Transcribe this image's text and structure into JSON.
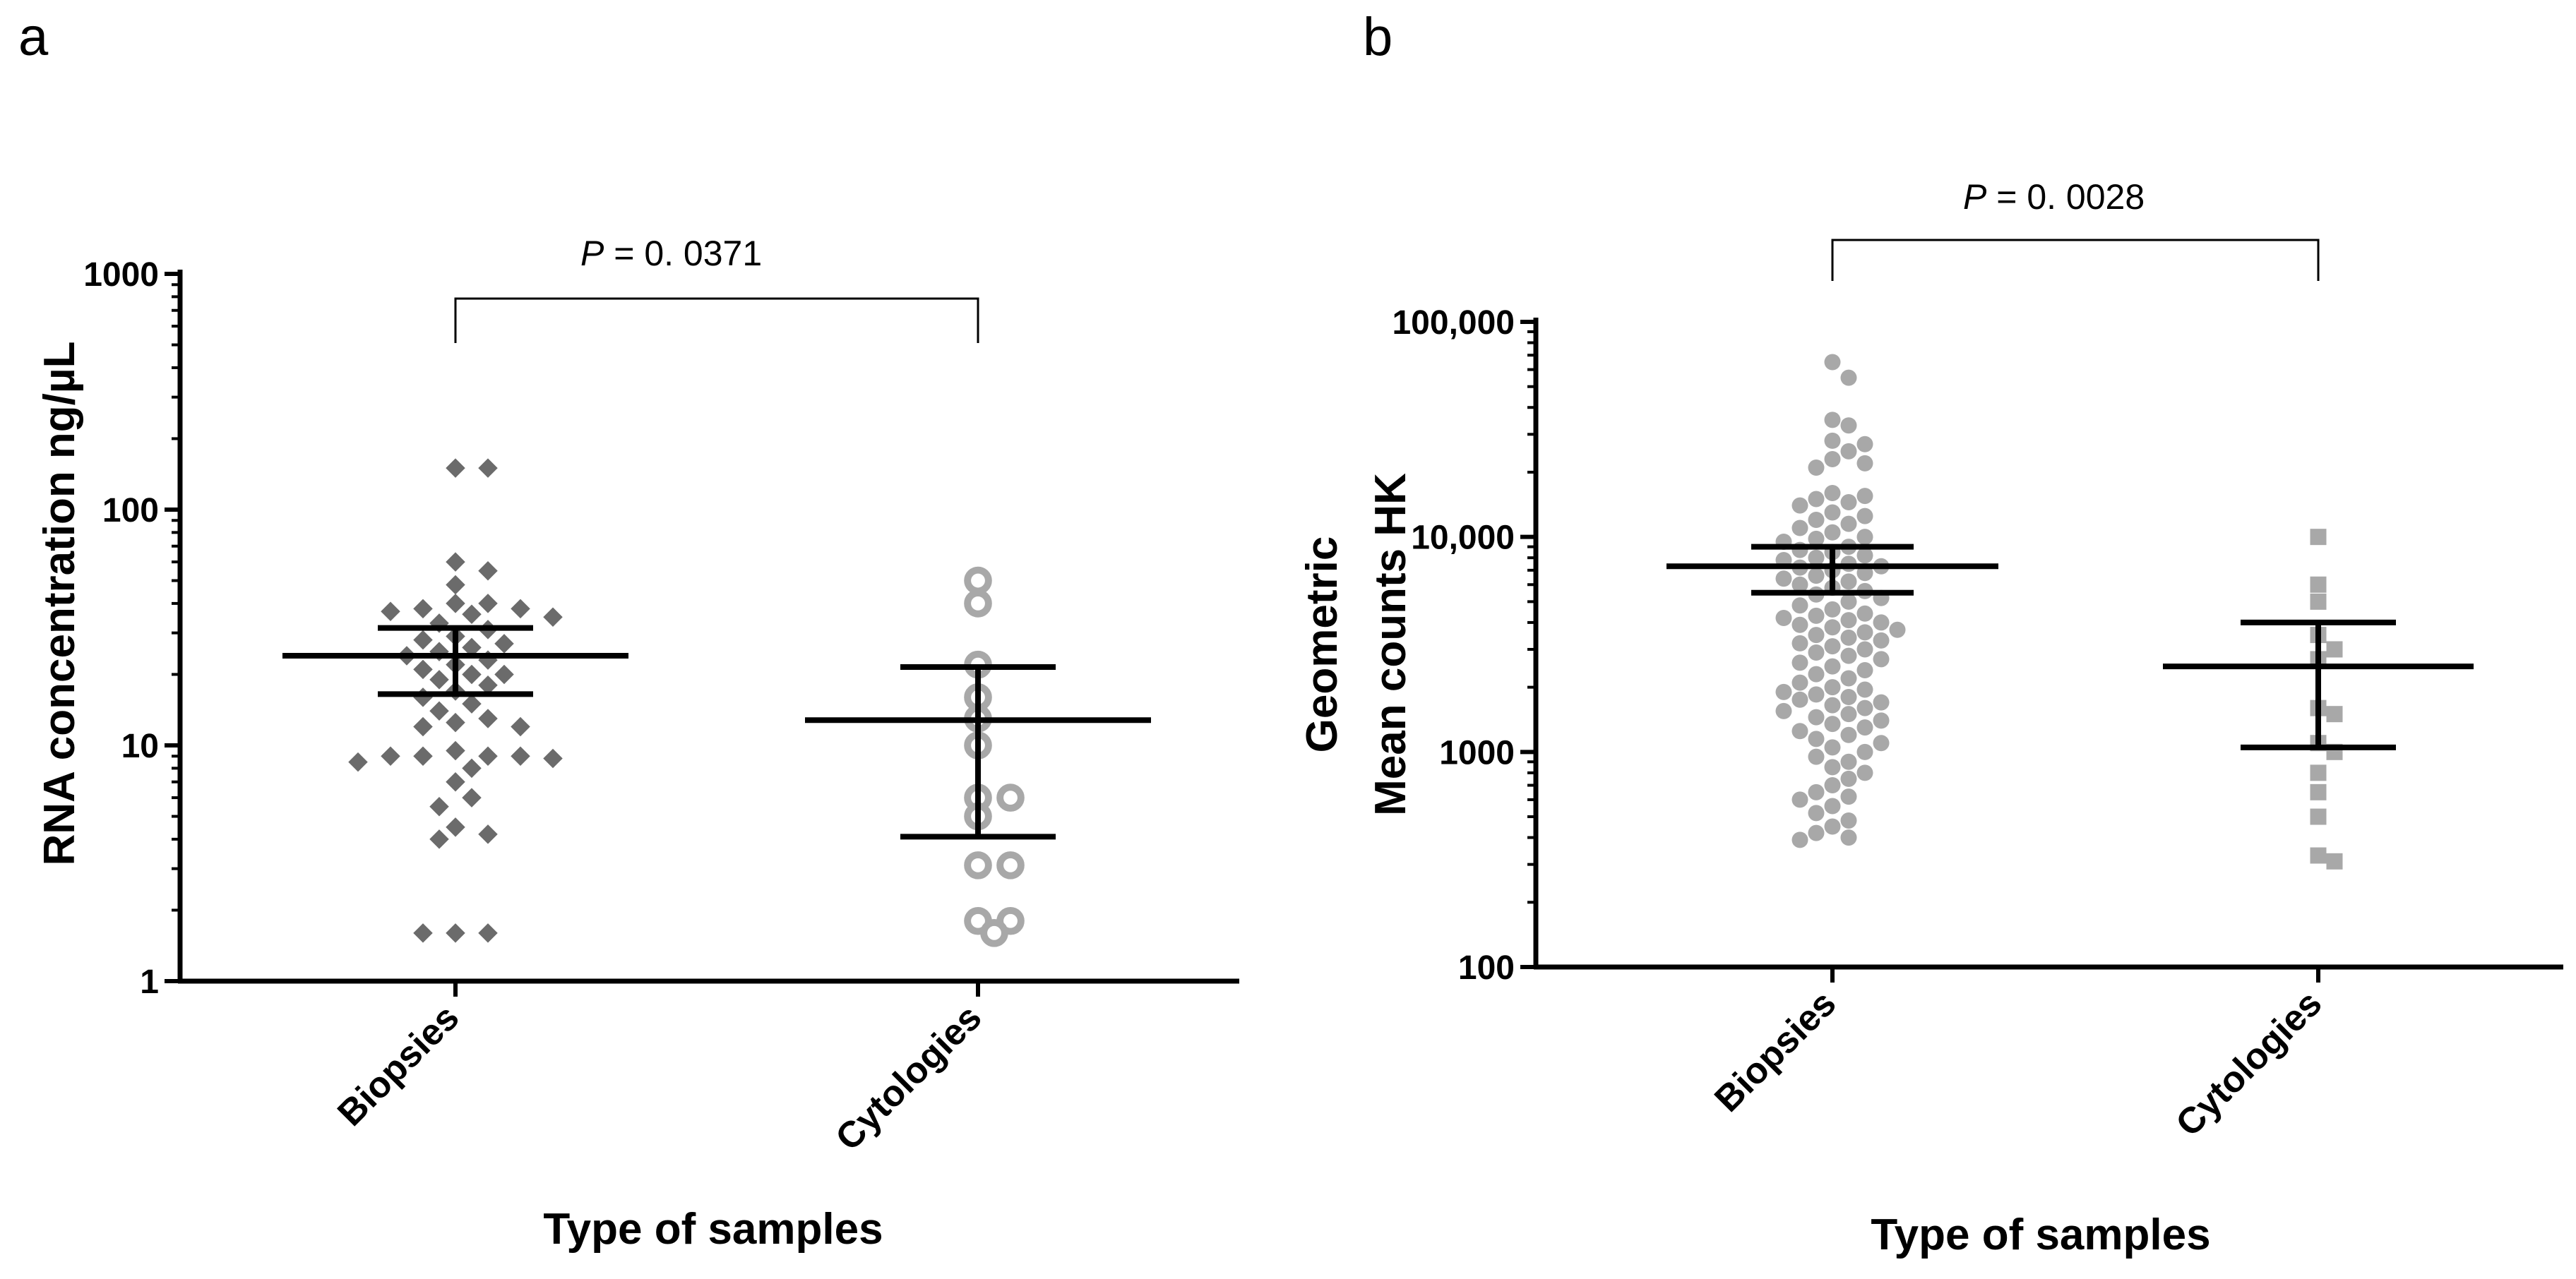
{
  "figure": {
    "panels": [
      {
        "letter": "a"
      },
      {
        "letter": "b"
      }
    ]
  },
  "chart_data": [
    {
      "panel": "a",
      "type": "scatter",
      "subtype": "dot-plot-with-mean-and-error-bars",
      "yscale": "log",
      "ylim": [
        1,
        1000
      ],
      "yticks": [
        1,
        10,
        100,
        1000
      ],
      "ytick_labels": [
        "1",
        "10",
        "100",
        "1000"
      ],
      "ylabel": "RNA concentration ng/µL",
      "xlabel": "Type of samples",
      "categories": [
        "Biopsies",
        "Cytologies"
      ],
      "significance": {
        "p_symbol": "P",
        "p_text": " =  0. 0371",
        "between": [
          "Biopsies",
          "Cytologies"
        ]
      },
      "colors": {
        "Biopsies": "#6b6b6b",
        "Cytologies": "#a8a8a8",
        "bars": "#000000"
      },
      "markers": {
        "Biopsies": "diamond",
        "Cytologies": "open-circle"
      },
      "series": [
        {
          "category": "Biopsies",
          "mean": 24,
          "error_low": 16.5,
          "error_high": 31.5,
          "points": [
            150,
            150,
            60,
            55,
            48,
            40,
            40,
            38,
            38,
            37,
            36,
            35,
            33,
            31,
            29,
            28,
            27,
            26,
            25,
            24,
            23,
            22,
            21,
            20,
            20,
            19,
            18,
            17,
            16,
            15,
            14,
            13,
            12.5,
            12,
            12,
            9.5,
            9,
            9,
            9,
            9,
            8.8,
            8.5,
            8,
            7,
            6,
            5.5,
            4.5,
            4.2,
            4,
            1.6,
            1.6,
            1.6
          ]
        },
        {
          "category": "Cytologies",
          "mean": 12.8,
          "error_low": 4.1,
          "error_high": 21.5,
          "points": [
            50,
            40,
            22,
            16,
            13,
            10,
            6,
            6,
            5,
            3.1,
            3.1,
            1.8,
            1.8,
            1.6
          ]
        }
      ]
    },
    {
      "panel": "b",
      "type": "scatter",
      "subtype": "dot-plot-with-mean-and-error-bars",
      "yscale": "log",
      "ylim": [
        100,
        100000
      ],
      "yticks": [
        100,
        1000,
        10000,
        100000
      ],
      "ytick_labels": [
        "100",
        "1000",
        "10,000",
        "100,000"
      ],
      "ylabel_lines": [
        "Geometric",
        "Mean counts HK"
      ],
      "xlabel": "Type of samples",
      "categories": [
        "Biopsies",
        "Cytologies"
      ],
      "significance": {
        "p_symbol": "P",
        "p_text": " =  0. 0028",
        "between": [
          "Biopsies",
          "Cytologies"
        ]
      },
      "colors": {
        "Biopsies": "#a8a8a8",
        "Cytologies": "#a8a8a8",
        "bars": "#000000"
      },
      "markers": {
        "Biopsies": "circle",
        "Cytologies": "square"
      },
      "series": [
        {
          "category": "Biopsies",
          "mean": 7300,
          "error_low": 5500,
          "error_high": 9000,
          "points": [
            65000,
            55000,
            35000,
            33000,
            28000,
            27000,
            25000,
            23000,
            22000,
            21000,
            16000,
            15500,
            15000,
            14500,
            14000,
            13000,
            12500,
            12000,
            11500,
            11000,
            10500,
            10000,
            9800,
            9500,
            9000,
            8700,
            8500,
            8200,
            8000,
            7800,
            7500,
            7300,
            7200,
            7000,
            6800,
            6600,
            6400,
            6200,
            6000,
            5800,
            5600,
            5400,
            5200,
            5000,
            4800,
            4600,
            4400,
            4300,
            4200,
            4100,
            4000,
            3900,
            3800,
            3700,
            3600,
            3500,
            3400,
            3300,
            3200,
            3100,
            3000,
            2900,
            2800,
            2700,
            2600,
            2500,
            2400,
            2300,
            2200,
            2100,
            2000,
            1950,
            1900,
            1850,
            1800,
            1750,
            1700,
            1650,
            1600,
            1550,
            1500,
            1450,
            1400,
            1350,
            1300,
            1250,
            1200,
            1150,
            1100,
            1050,
            1000,
            950,
            900,
            850,
            800,
            750,
            700,
            650,
            620,
            600,
            560,
            520,
            480,
            450,
            420,
            400,
            390
          ]
        },
        {
          "category": "Cytologies",
          "mean": 2500,
          "error_low": 1050,
          "error_high": 4000,
          "points": [
            10000,
            6000,
            5000,
            3500,
            3000,
            2700,
            1600,
            1500,
            1100,
            1000,
            800,
            650,
            500,
            330,
            310
          ]
        }
      ]
    }
  ]
}
